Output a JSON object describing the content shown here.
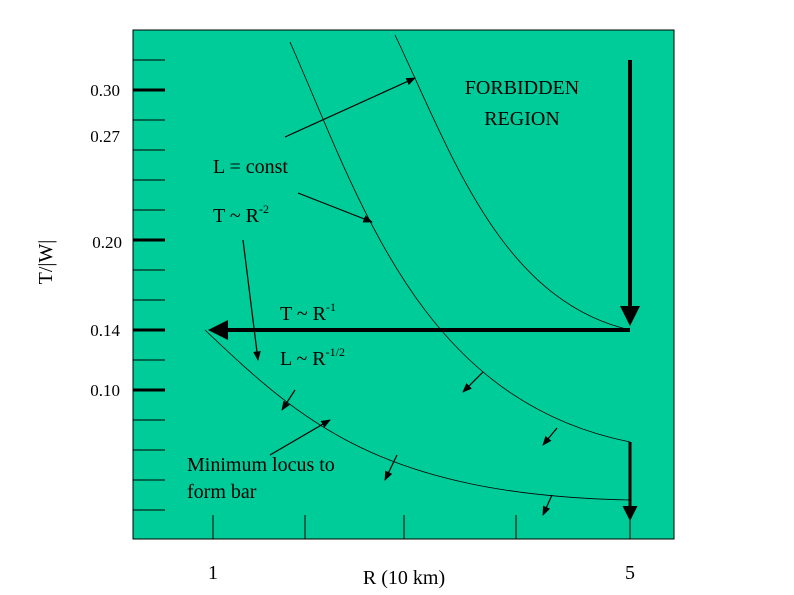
{
  "axes": {
    "y_label": "T/|W|",
    "x_label": "R (10 km)",
    "y_ticks": [
      "0.30",
      "0.27",
      "0.20",
      "0.14",
      "0.10"
    ],
    "x_ticks": [
      "1",
      "5"
    ]
  },
  "annotations": {
    "forbidden": [
      "FORBIDDEN",
      "REGION"
    ],
    "l_const": "L = const",
    "t_r2": {
      "text": "T ~ R",
      "sup": "-2"
    },
    "t_r1": {
      "text": "T ~ R",
      "sup": "-1"
    },
    "l_r12": {
      "text": "L ~ R",
      "sup": "-1/2"
    },
    "minimum": [
      "Minimum locus to",
      "form bar"
    ]
  }
}
